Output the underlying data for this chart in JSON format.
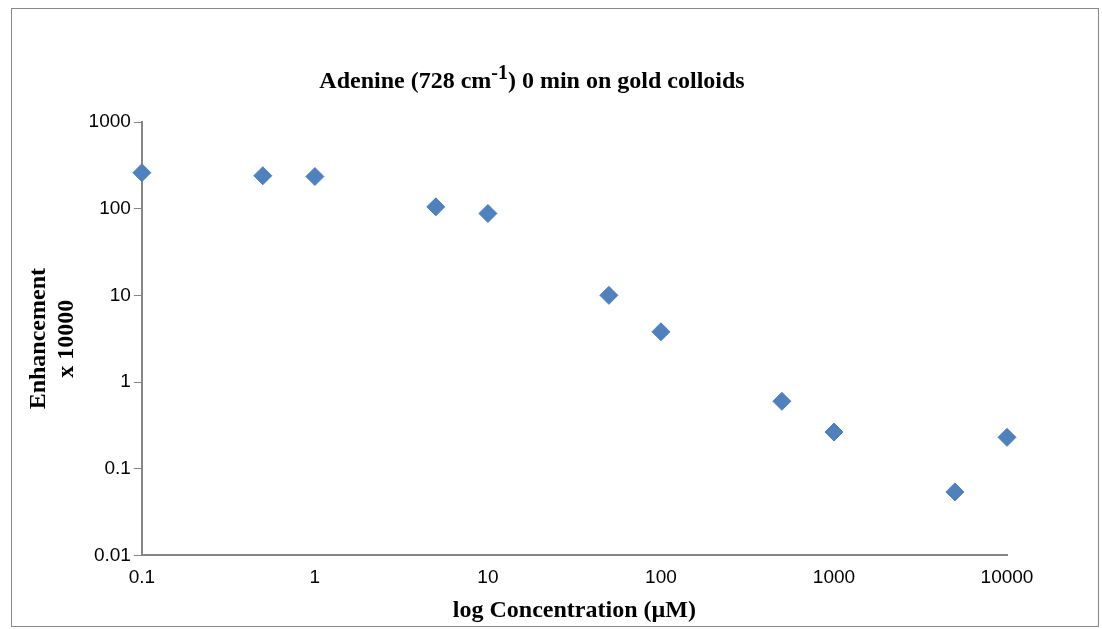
{
  "chart_data": {
    "type": "scatter",
    "title": "Adenine (728 cm$^{-1}$) 0 min on gold colloids",
    "xlabel": "log Concentration (µM)",
    "ylabel": "Enhancement\nx 10000",
    "x": [
      0.1,
      0.5,
      1,
      5,
      10,
      50,
      100,
      500,
      1000,
      5000,
      10000
    ],
    "series": [
      {
        "color": "#4f81bd",
        "values": [
          260,
          240,
          235,
          105,
          88,
          10,
          3.8,
          0.6,
          0.265,
          0.054,
          0.23
        ]
      }
    ],
    "log": "xy",
    "xlim": [
      0.1,
      10000
    ],
    "xticks": [
      0.1,
      1,
      10,
      100,
      1000,
      10000
    ],
    "ylim": [
      0.01,
      1000
    ],
    "yticks": [
      0.01,
      0.1,
      1,
      10,
      100,
      1000
    ],
    "marker": "diamond",
    "grid": false,
    "legend": false
  }
}
